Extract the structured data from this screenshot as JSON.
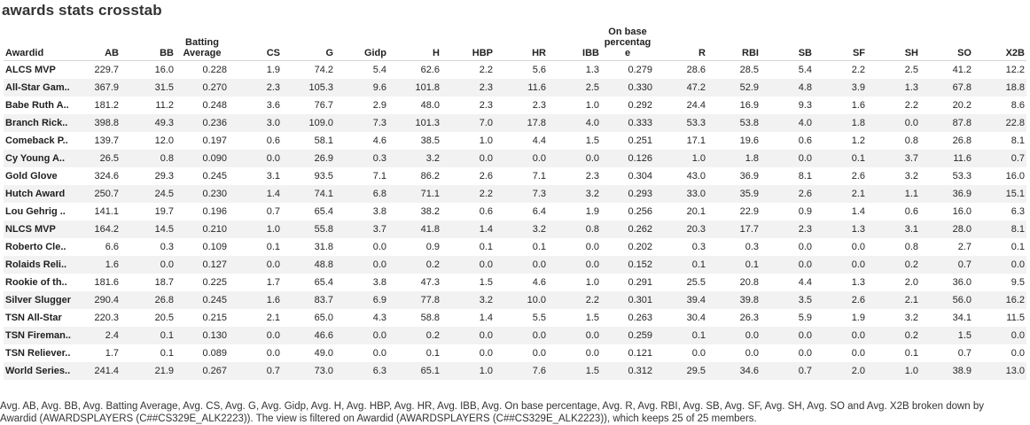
{
  "title": "awards stats crosstab",
  "caption": "Avg. AB, Avg. BB, Avg. Batting Average, Avg. CS, Avg. G, Avg. Gidp, Avg. H, Avg. HBP, Avg. HR, Avg. IBB, Avg. On base percentage, Avg. R, Avg. RBI, Avg. SB, Avg. SF, Avg. SH, Avg. SO and Avg. X2B broken down by Awardid (AWARDSPLAYERS (C##CS329E_ALK2223)). The view is filtered on Awardid (AWARDSPLAYERS (C##CS329E_ALK2223)), which keeps 25 of 25 members.",
  "chart_data": {
    "type": "table",
    "row_header": "Awardid",
    "columns": [
      "AB",
      "BB",
      "Batting Average",
      "CS",
      "G",
      "Gidp",
      "H",
      "HBP",
      "HR",
      "IBB",
      "On base percentage",
      "R",
      "RBI",
      "SB",
      "SF",
      "SH",
      "SO",
      "X2B"
    ],
    "column_display": [
      "AB",
      "BB",
      "Batting\nAverage",
      "CS",
      "G",
      "Gidp",
      "H",
      "HBP",
      "HR",
      "IBB",
      "On base\npercentag\ne",
      "R",
      "RBI",
      "SB",
      "SF",
      "SH",
      "SO",
      "X2B"
    ],
    "rows": [
      {
        "label": "ALCS MVP",
        "values": [
          "229.7",
          "16.0",
          "0.228",
          "1.9",
          "74.2",
          "5.4",
          "62.6",
          "2.2",
          "5.6",
          "1.3",
          "0.279",
          "28.6",
          "28.5",
          "5.4",
          "2.2",
          "2.5",
          "41.2",
          "12.2"
        ]
      },
      {
        "label": "All-Star Gam..",
        "values": [
          "367.9",
          "31.5",
          "0.270",
          "2.3",
          "105.3",
          "9.6",
          "101.8",
          "2.3",
          "11.6",
          "2.5",
          "0.330",
          "47.2",
          "52.9",
          "4.8",
          "3.9",
          "1.3",
          "67.8",
          "18.8"
        ]
      },
      {
        "label": "Babe Ruth A..",
        "values": [
          "181.2",
          "11.2",
          "0.248",
          "3.6",
          "76.7",
          "2.9",
          "48.0",
          "2.3",
          "2.3",
          "1.0",
          "0.292",
          "24.4",
          "16.9",
          "9.3",
          "1.6",
          "2.2",
          "20.2",
          "8.6"
        ]
      },
      {
        "label": "Branch Rick..",
        "values": [
          "398.8",
          "49.3",
          "0.236",
          "3.0",
          "109.0",
          "7.3",
          "101.3",
          "7.0",
          "17.8",
          "4.0",
          "0.333",
          "53.3",
          "53.8",
          "4.0",
          "1.8",
          "0.0",
          "87.8",
          "22.8"
        ]
      },
      {
        "label": "Comeback P..",
        "values": [
          "139.7",
          "12.0",
          "0.197",
          "0.6",
          "58.1",
          "4.6",
          "38.5",
          "1.0",
          "4.4",
          "1.5",
          "0.251",
          "17.1",
          "19.6",
          "0.6",
          "1.2",
          "0.8",
          "26.8",
          "8.1"
        ]
      },
      {
        "label": "Cy Young A..",
        "values": [
          "26.5",
          "0.8",
          "0.090",
          "0.0",
          "26.9",
          "0.3",
          "3.2",
          "0.0",
          "0.0",
          "0.0",
          "0.126",
          "1.0",
          "1.8",
          "0.0",
          "0.1",
          "3.7",
          "11.6",
          "0.7"
        ]
      },
      {
        "label": "Gold Glove",
        "values": [
          "324.6",
          "29.3",
          "0.245",
          "3.1",
          "93.5",
          "7.1",
          "86.2",
          "2.6",
          "7.1",
          "2.3",
          "0.304",
          "43.0",
          "36.9",
          "8.1",
          "2.6",
          "3.2",
          "53.3",
          "16.0"
        ]
      },
      {
        "label": "Hutch Award",
        "values": [
          "250.7",
          "24.5",
          "0.230",
          "1.4",
          "74.1",
          "6.8",
          "71.1",
          "2.2",
          "7.3",
          "3.2",
          "0.293",
          "33.0",
          "35.9",
          "2.6",
          "2.1",
          "1.1",
          "36.9",
          "15.1"
        ]
      },
      {
        "label": "Lou Gehrig ..",
        "values": [
          "141.1",
          "19.7",
          "0.196",
          "0.7",
          "65.4",
          "3.8",
          "38.2",
          "0.6",
          "6.4",
          "1.9",
          "0.256",
          "20.1",
          "22.9",
          "0.9",
          "1.4",
          "0.6",
          "16.0",
          "6.3"
        ]
      },
      {
        "label": "NLCS MVP",
        "values": [
          "164.2",
          "14.5",
          "0.210",
          "1.0",
          "55.8",
          "3.7",
          "41.8",
          "1.4",
          "3.2",
          "0.8",
          "0.262",
          "20.3",
          "17.7",
          "2.3",
          "1.3",
          "3.1",
          "28.0",
          "8.1"
        ]
      },
      {
        "label": "Roberto Cle..",
        "values": [
          "6.6",
          "0.3",
          "0.109",
          "0.1",
          "31.8",
          "0.0",
          "0.9",
          "0.1",
          "0.1",
          "0.0",
          "0.202",
          "0.3",
          "0.3",
          "0.0",
          "0.0",
          "0.8",
          "2.7",
          "0.1"
        ]
      },
      {
        "label": "Rolaids Reli..",
        "values": [
          "1.6",
          "0.0",
          "0.127",
          "0.0",
          "48.8",
          "0.0",
          "0.2",
          "0.0",
          "0.0",
          "0.0",
          "0.152",
          "0.1",
          "0.1",
          "0.0",
          "0.0",
          "0.2",
          "0.7",
          "0.0"
        ]
      },
      {
        "label": "Rookie of th..",
        "values": [
          "181.6",
          "18.7",
          "0.225",
          "1.7",
          "65.4",
          "3.8",
          "47.3",
          "1.5",
          "4.6",
          "1.0",
          "0.291",
          "25.5",
          "20.8",
          "4.4",
          "1.3",
          "2.0",
          "36.0",
          "9.5"
        ]
      },
      {
        "label": "Silver Slugger",
        "values": [
          "290.4",
          "26.8",
          "0.245",
          "1.6",
          "83.7",
          "6.9",
          "77.8",
          "3.2",
          "10.0",
          "2.2",
          "0.301",
          "39.4",
          "39.8",
          "3.5",
          "2.6",
          "2.1",
          "56.0",
          "16.2"
        ]
      },
      {
        "label": "TSN All-Star",
        "values": [
          "220.3",
          "20.5",
          "0.215",
          "2.1",
          "65.0",
          "4.3",
          "58.8",
          "1.4",
          "5.5",
          "1.5",
          "0.263",
          "30.4",
          "26.3",
          "5.9",
          "1.9",
          "3.2",
          "34.1",
          "11.5"
        ]
      },
      {
        "label": "TSN Fireman..",
        "values": [
          "2.4",
          "0.1",
          "0.130",
          "0.0",
          "46.6",
          "0.0",
          "0.2",
          "0.0",
          "0.0",
          "0.0",
          "0.259",
          "0.1",
          "0.0",
          "0.0",
          "0.0",
          "0.2",
          "1.5",
          "0.0"
        ]
      },
      {
        "label": "TSN Reliever..",
        "values": [
          "1.7",
          "0.1",
          "0.089",
          "0.0",
          "49.0",
          "0.0",
          "0.1",
          "0.0",
          "0.0",
          "0.0",
          "0.121",
          "0.0",
          "0.0",
          "0.0",
          "0.0",
          "0.1",
          "0.7",
          "0.0"
        ]
      },
      {
        "label": "World Series..",
        "values": [
          "241.4",
          "21.9",
          "0.267",
          "0.7",
          "73.0",
          "6.3",
          "65.1",
          "1.0",
          "7.6",
          "1.5",
          "0.312",
          "29.5",
          "34.6",
          "0.7",
          "2.0",
          "1.0",
          "38.9",
          "13.0"
        ]
      }
    ]
  }
}
